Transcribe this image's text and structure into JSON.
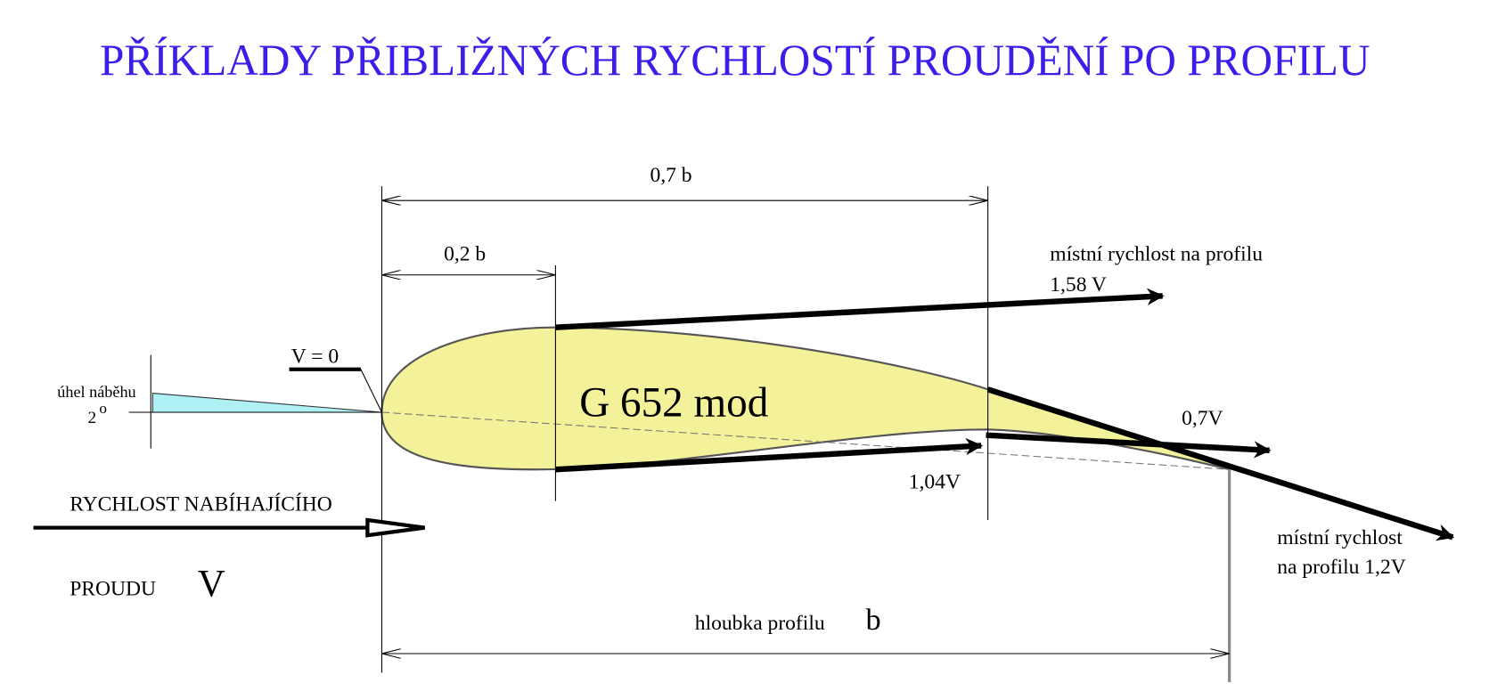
{
  "title": "PŘÍKLADY PŘIBLIŽNÝCH RYCHLOSTÍ PROUDĚNÍ PO PROFILU",
  "dimensions": {
    "upper": "0,7 b",
    "lower": "0,2 b",
    "chord": "hloubka profilu",
    "chord_symbol": "b"
  },
  "profile": {
    "name": "G 652 mod",
    "stagnation": "V = 0"
  },
  "angle": {
    "label": "úhel náběhu",
    "value": "2",
    "unit": "o"
  },
  "velocities": {
    "upper_label": "místní rychlost na profilu",
    "upper_value": "1,58 V",
    "lower": "1,04V",
    "trailing_lower": "0,7V",
    "trailing_upper_1": "místní rychlost",
    "trailing_upper_2": "na profilu 1,2V"
  },
  "freestream": {
    "line1": "RYCHLOST NABÍHAJÍCÍHO",
    "line2": "PROUDU",
    "symbol": "V"
  }
}
